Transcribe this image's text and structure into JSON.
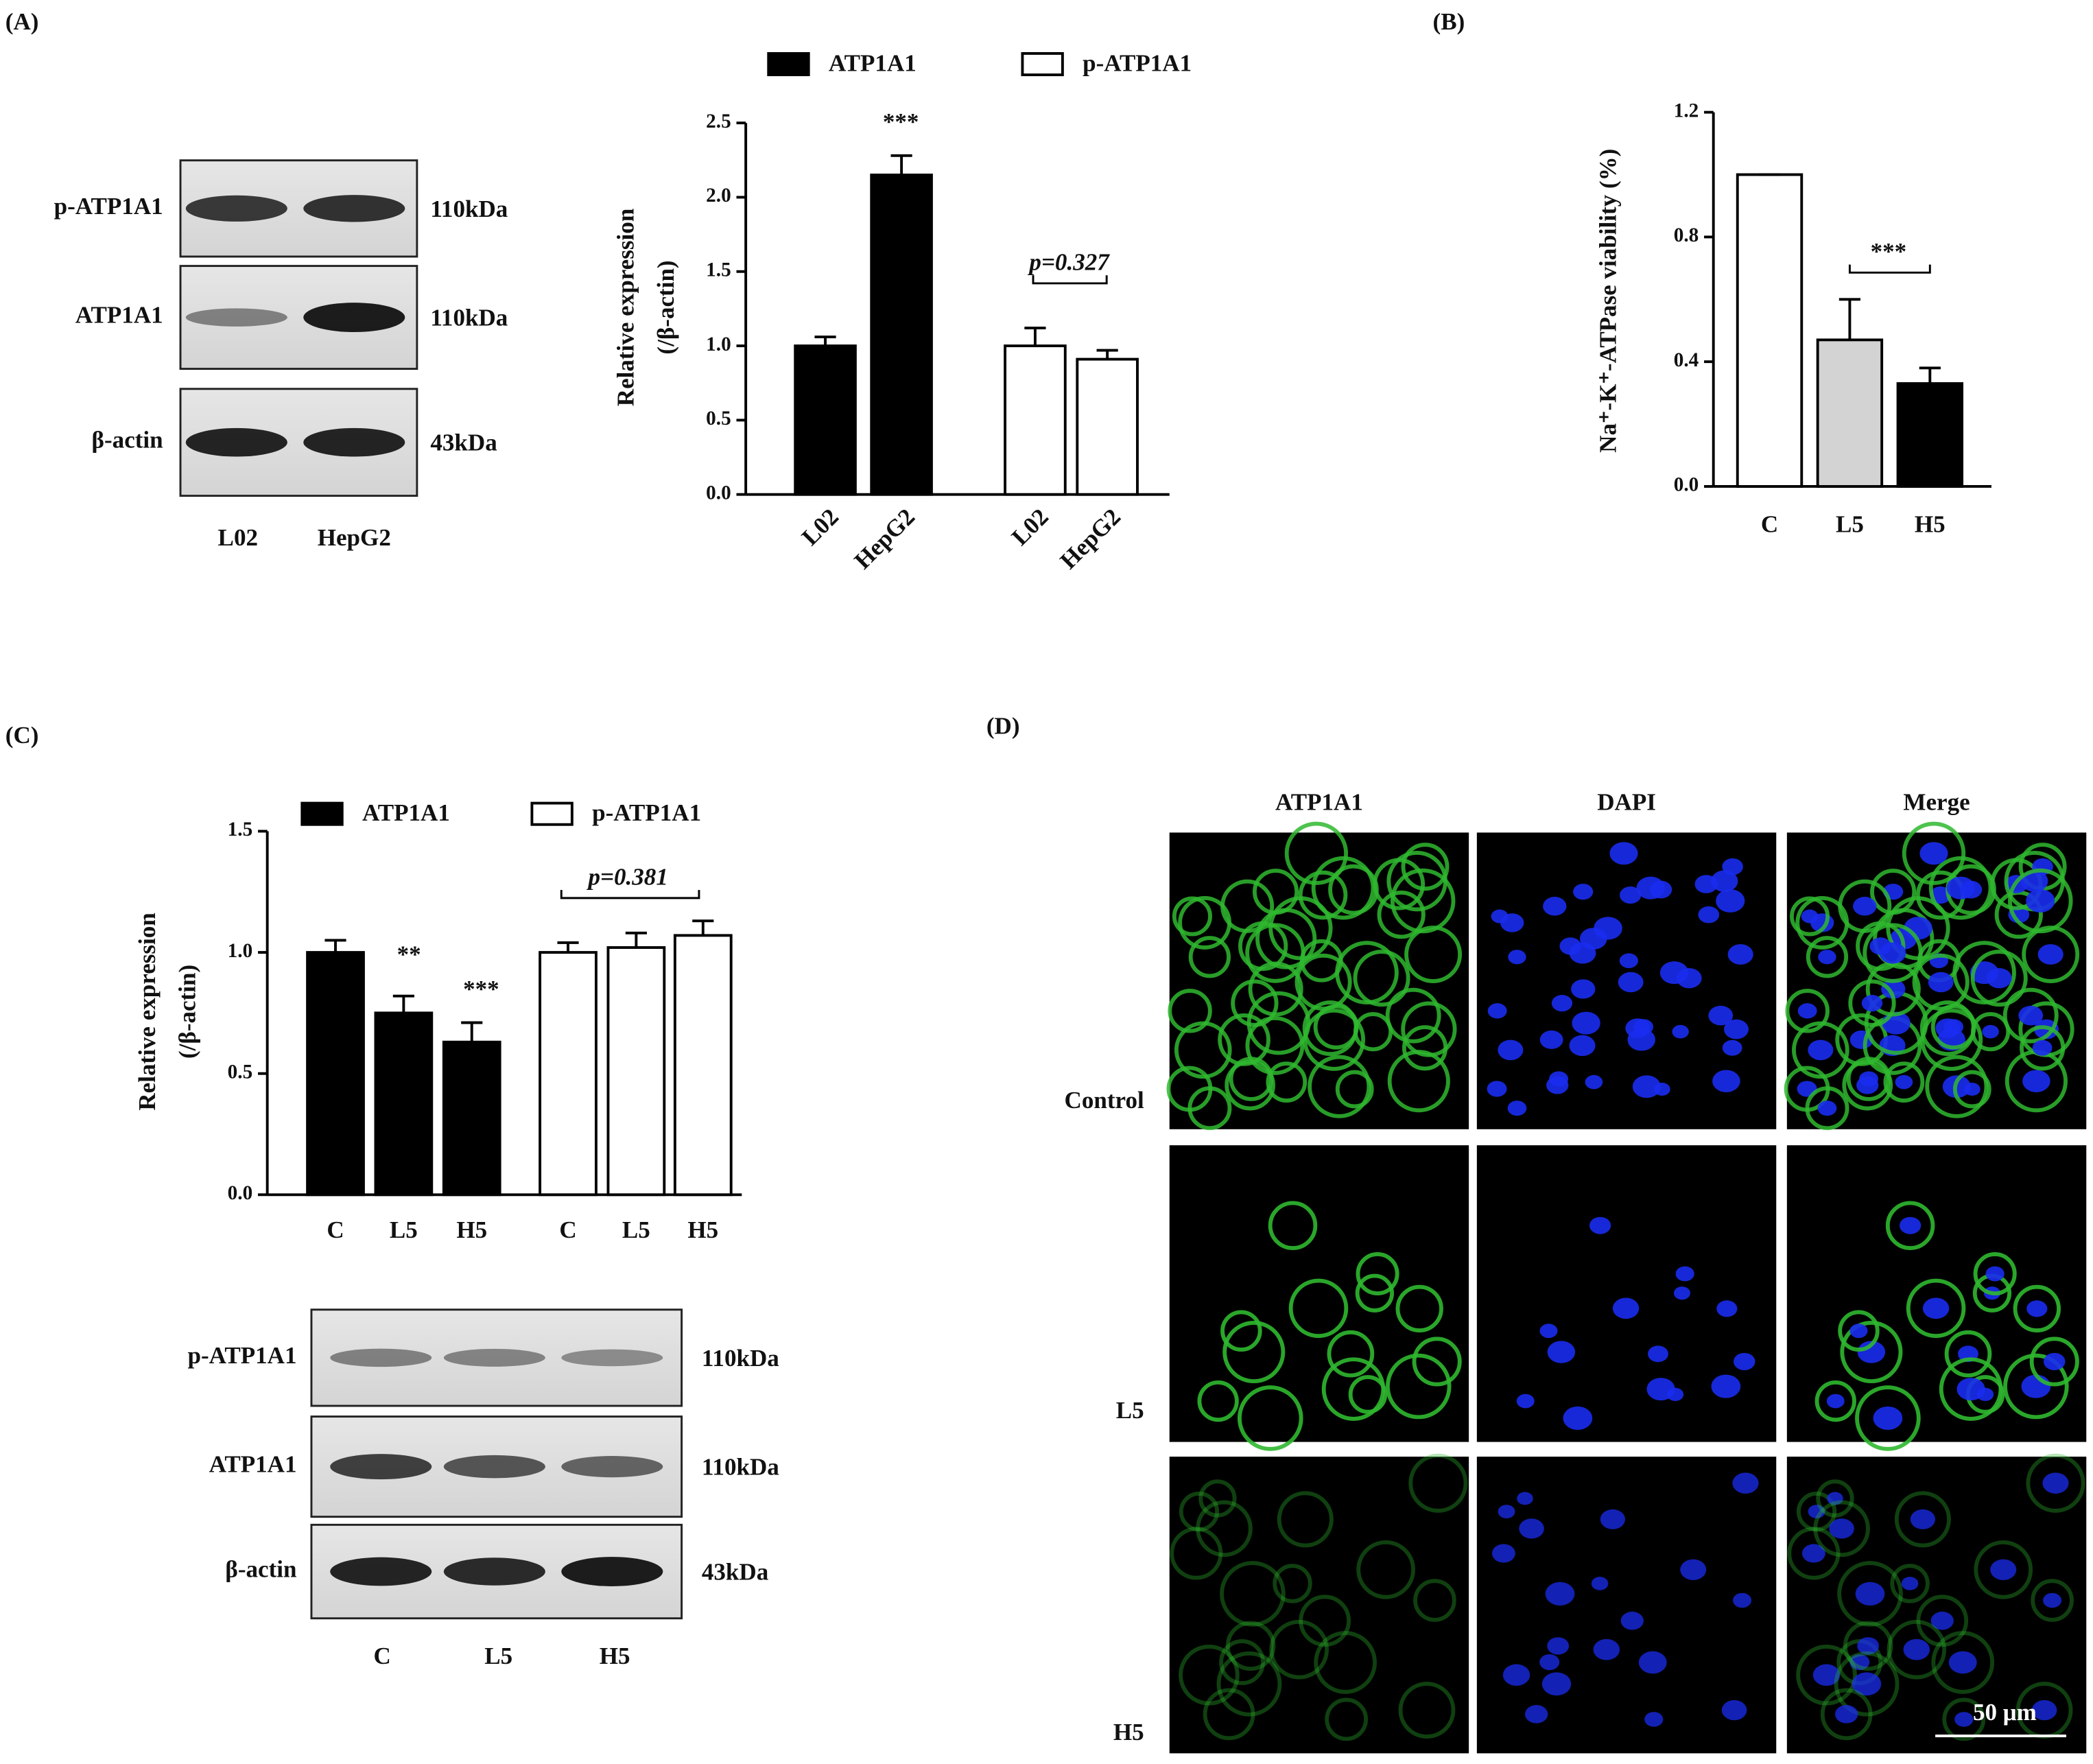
{
  "panels": [
    "(A)",
    "(B)",
    "(C)",
    "(D)"
  ],
  "blot_a": {
    "rows": [
      "p-ATP1A1",
      "ATP1A1",
      "β-actin"
    ],
    "sizes": [
      "110kDa",
      "110kDa",
      "43kDa"
    ],
    "lanes": [
      "L02",
      "HepG2"
    ]
  },
  "blot_c": {
    "rows": [
      "p-ATP1A1",
      "ATP1A1",
      "β-actin"
    ],
    "sizes": [
      "110kDa",
      "110kDa",
      "43kDa"
    ],
    "lanes": [
      "C",
      "L5",
      "H5"
    ]
  },
  "microscopy": {
    "columns": [
      "ATP1A1",
      "DAPI",
      "Merge"
    ],
    "rows": [
      "Control",
      "L5",
      "H5"
    ],
    "scale_bar": "50 μm"
  },
  "chart_data": [
    {
      "type": "bar",
      "ylabel": [
        "Relative expression",
        "(/β-actin)"
      ],
      "categories": [
        "L02",
        "HepG2"
      ],
      "series": [
        {
          "name": "ATP1A1",
          "color": "#000000",
          "values": [
            1.0,
            2.15
          ],
          "errors": [
            0.06,
            0.13
          ]
        },
        {
          "name": "p-ATP1A1",
          "color": "#ffffff",
          "values": [
            1.0,
            0.91
          ],
          "errors": [
            0.12,
            0.06
          ]
        }
      ],
      "ylim": [
        0,
        2.5
      ],
      "yticks": [
        {
          "value": 0,
          "label": "0.0"
        },
        {
          "value": 0.5,
          "label": "0.5"
        },
        {
          "value": 1,
          "label": "1.0"
        },
        {
          "value": 1.5,
          "label": "1.5"
        },
        {
          "value": 2,
          "label": "2.0"
        },
        {
          "value": 2.5,
          "label": "2.5"
        }
      ],
      "annotations": [
        "***",
        "p=0.327"
      ]
    },
    {
      "type": "bar",
      "ylabel": "Na⁺-K⁺-ATPase viability (%)",
      "categories": [
        "C",
        "L5",
        "H5"
      ],
      "values": [
        1.0,
        0.47,
        0.33
      ],
      "errors": [
        0,
        0.13,
        0.05
      ],
      "colors": [
        "#ffffff",
        "#d3d3d3",
        "#000000"
      ],
      "ylim": [
        0,
        1.2
      ],
      "yticks": [
        {
          "value": 0,
          "label": "0.0"
        },
        {
          "value": 0.4,
          "label": "0.4"
        },
        {
          "value": 0.8,
          "label": "0.8"
        },
        {
          "value": 1.2,
          "label": "1.2"
        }
      ],
      "annotations": [
        "***"
      ]
    },
    {
      "type": "bar",
      "ylabel": [
        "Relative expression",
        "(/β-actin)"
      ],
      "categories": [
        "C",
        "L5",
        "H5"
      ],
      "series": [
        {
          "name": "ATP1A1",
          "color": "#000000",
          "values": [
            1.0,
            0.75,
            0.63
          ],
          "errors": [
            0.05,
            0.07,
            0.08
          ]
        },
        {
          "name": "p-ATP1A1",
          "color": "#ffffff",
          "values": [
            1.0,
            1.02,
            1.07
          ],
          "errors": [
            0.04,
            0.06,
            0.06
          ]
        }
      ],
      "ylim": [
        0,
        1.5
      ],
      "yticks": [
        {
          "value": 0,
          "label": "0.0"
        },
        {
          "value": 0.5,
          "label": "0.5"
        },
        {
          "value": 1,
          "label": "1.0"
        },
        {
          "value": 1.5,
          "label": "1.5"
        }
      ],
      "annotations": [
        "**",
        "***",
        "p=0.381"
      ]
    }
  ]
}
